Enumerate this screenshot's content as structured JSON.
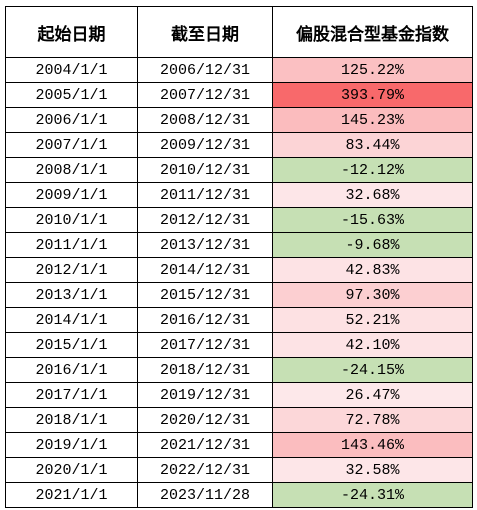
{
  "table": {
    "header": [
      "起始日期",
      "截至日期",
      "偏股混合型基金指数"
    ],
    "rows": [
      [
        "2004/1/1",
        "2006/12/31",
        "125.22%"
      ],
      [
        "2005/1/1",
        "2007/12/31",
        "393.79%"
      ],
      [
        "2006/1/1",
        "2008/12/31",
        "145.23%"
      ],
      [
        "2007/1/1",
        "2009/12/31",
        "83.44%"
      ],
      [
        "2008/1/1",
        "2010/12/31",
        "-12.12%"
      ],
      [
        "2009/1/1",
        "2011/12/31",
        "32.68%"
      ],
      [
        "2010/1/1",
        "2012/12/31",
        "-15.63%"
      ],
      [
        "2011/1/1",
        "2013/12/31",
        "-9.68%"
      ],
      [
        "2012/1/1",
        "2014/12/31",
        "42.83%"
      ],
      [
        "2013/1/1",
        "2015/12/31",
        "97.30%"
      ],
      [
        "2014/1/1",
        "2016/12/31",
        "52.21%"
      ],
      [
        "2015/1/1",
        "2017/12/31",
        "42.10%"
      ],
      [
        "2016/1/1",
        "2018/12/31",
        "-24.15%"
      ],
      [
        "2017/1/1",
        "2019/12/31",
        "26.47%"
      ],
      [
        "2018/1/1",
        "2020/12/31",
        "72.78%"
      ],
      [
        "2019/1/1",
        "2021/12/31",
        "143.46%"
      ],
      [
        "2020/1/1",
        "2022/12/31",
        "32.58%"
      ],
      [
        "2021/1/1",
        "2023/11/28",
        "-24.31%"
      ]
    ],
    "cell_colors": [
      "#fbc0c2",
      "#f8696b",
      "#fbbcbe",
      "#fcd4d6",
      "#c6e0b4",
      "#fde6e8",
      "#c6e0b4",
      "#c6e0b4",
      "#fde3e5",
      "#fccfd1",
      "#fde1e3",
      "#fde3e5",
      "#c6e0b4",
      "#fde8ea",
      "#fcd7d9",
      "#fbbdbf",
      "#fde6e8",
      "#c6e0b4"
    ]
  }
}
